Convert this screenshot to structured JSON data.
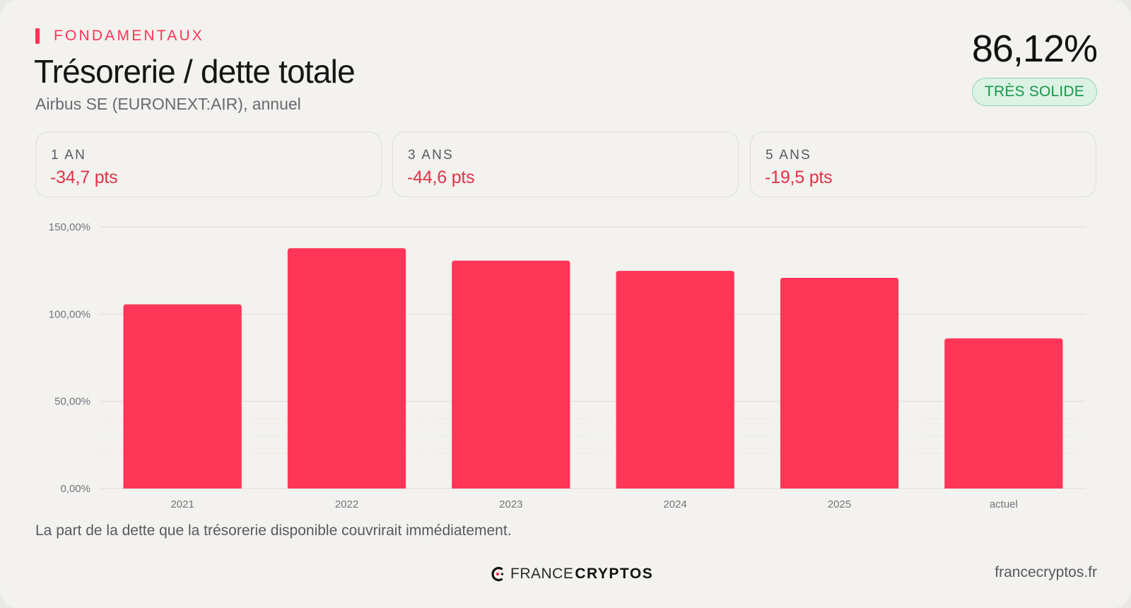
{
  "header": {
    "kicker": "FONDAMENTAUX",
    "title": "Trésorerie / dette totale",
    "subtitle": "Airbus SE (EURONEXT:AIR), annuel",
    "value": "86,12%",
    "badge": "TRÈS SOLIDE"
  },
  "colors": {
    "accent": "#ff3355",
    "bar": "#ff3657",
    "negative": "#e03346",
    "badge_text": "#16984a",
    "badge_bg": "#dcf2e4"
  },
  "stats": [
    {
      "label": "1 AN",
      "value": "-34,7 pts"
    },
    {
      "label": "3 ANS",
      "value": "-44,6 pts"
    },
    {
      "label": "5 ANS",
      "value": "-19,5 pts"
    }
  ],
  "chart_data": {
    "type": "bar",
    "categories": [
      "2021",
      "2022",
      "2023",
      "2024",
      "2025",
      "actuel"
    ],
    "values": [
      105.6,
      137.8,
      130.7,
      124.8,
      120.8,
      86.12
    ],
    "ylim": [
      0,
      150
    ],
    "yticks": [
      0,
      50,
      100,
      150
    ],
    "ytick_labels": [
      "0,00%",
      "50,00%",
      "100,00%",
      "150,00%"
    ],
    "grid": true,
    "legend": "none"
  },
  "footer": {
    "caption": "La part de la dette que la trésorerie disponible couvrirait immédiatement.",
    "logo_light": "FRANCE",
    "logo_bold": "CRYPTOS",
    "site": "francecryptos.fr"
  }
}
